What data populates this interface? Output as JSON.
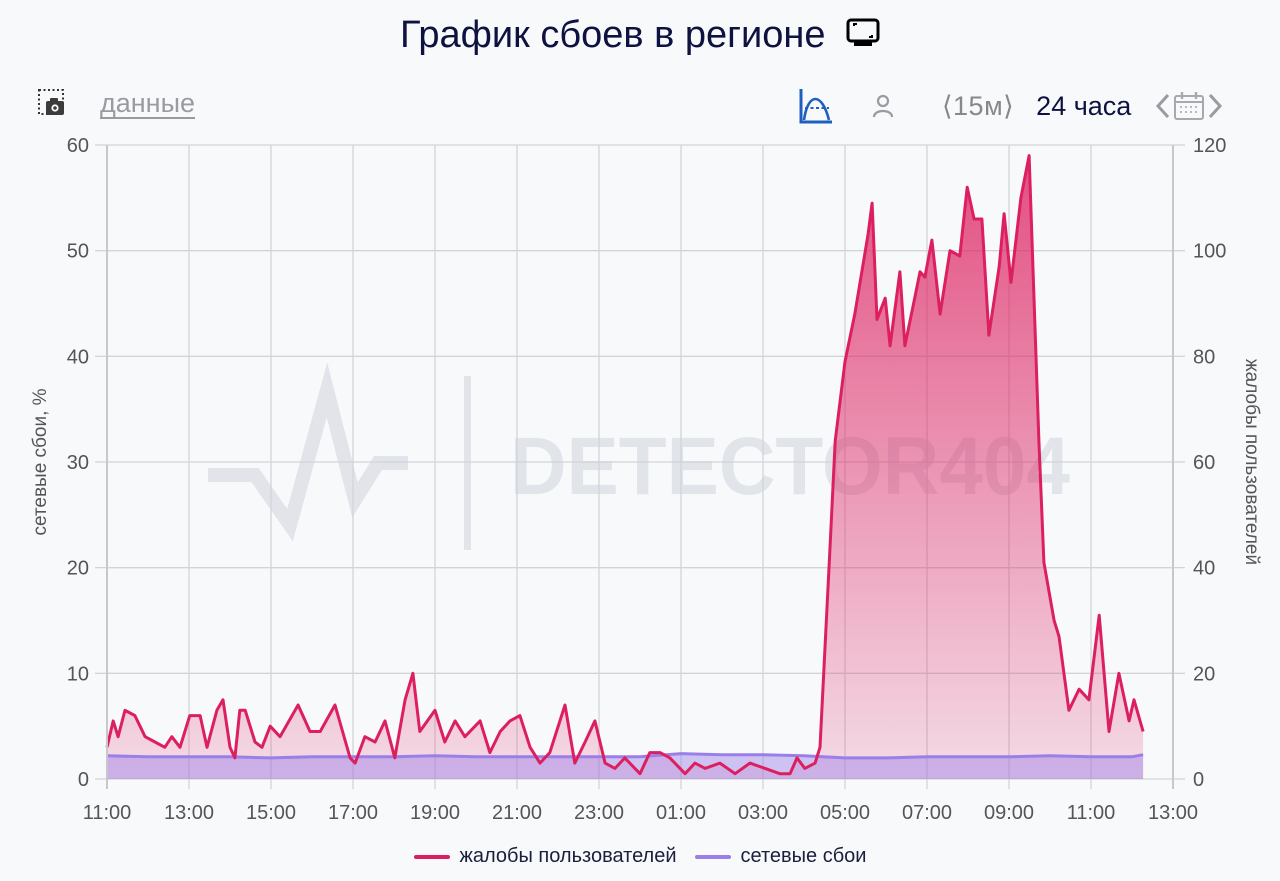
{
  "header": {
    "title": "График сбоев в регионе",
    "title_icon": "tv-monitor-icon"
  },
  "toolbar": {
    "screenshot_icon": "camera-screenshot-icon",
    "data_link": "данные",
    "chart_mode_icon": "area-chart-toggle-icon",
    "user_icon": "user-icon",
    "interval": "⟨15м⟩",
    "period": "24 часа",
    "prev_icon": "chevron-left-icon",
    "calendar_icon": "calendar-icon",
    "next_icon": "chevron-right-icon"
  },
  "colors": {
    "complaints": "#dc1f5f",
    "network": "#9b7fe8",
    "accent": "#1f5fbf",
    "title": "#0d1240",
    "grid": "#d4d4d8"
  },
  "watermark": "DETECTOR404",
  "chart_data": {
    "type": "area",
    "title": "График сбоев в регионе",
    "xlabel": "",
    "ylabel": "сетевые сбои, %",
    "ylabel_right": "жалобы пользователей",
    "ylim": [
      0,
      60
    ],
    "ylim_right": [
      0,
      120
    ],
    "yticks": [
      0,
      10,
      20,
      30,
      40,
      50,
      60
    ],
    "yticks_right": [
      0,
      20,
      40,
      60,
      80,
      100,
      120
    ],
    "xticks": [
      "11:00",
      "13:00",
      "15:00",
      "17:00",
      "19:00",
      "21:00",
      "23:00",
      "01:00",
      "03:00",
      "05:00",
      "07:00",
      "09:00",
      "11:00",
      "13:00"
    ],
    "x_range_hours": [
      0,
      26
    ],
    "grid": true,
    "legend_position": "bottom",
    "series": [
      {
        "name": "жалобы пользователей",
        "axis": "right",
        "color": "#dc1f5f",
        "points_hours_value": [
          [
            0,
            6
          ],
          [
            0.15,
            11
          ],
          [
            0.27,
            8
          ],
          [
            0.44,
            13
          ],
          [
            0.68,
            12
          ],
          [
            0.93,
            8
          ],
          [
            1.17,
            7
          ],
          [
            1.41,
            6
          ],
          [
            1.58,
            8
          ],
          [
            1.78,
            6
          ],
          [
            2.02,
            12
          ],
          [
            2.27,
            12
          ],
          [
            2.44,
            6
          ],
          [
            2.68,
            13
          ],
          [
            2.83,
            15
          ],
          [
            3.0,
            6
          ],
          [
            3.12,
            4
          ],
          [
            3.24,
            13
          ],
          [
            3.37,
            13
          ],
          [
            3.61,
            7
          ],
          [
            3.78,
            6
          ],
          [
            3.98,
            10
          ],
          [
            4.22,
            8
          ],
          [
            4.66,
            14
          ],
          [
            4.95,
            9
          ],
          [
            5.2,
            9
          ],
          [
            5.56,
            14
          ],
          [
            5.93,
            4
          ],
          [
            6.05,
            3
          ],
          [
            6.29,
            8
          ],
          [
            6.54,
            7
          ],
          [
            6.78,
            11
          ],
          [
            7.02,
            4
          ],
          [
            7.27,
            15
          ],
          [
            7.46,
            20
          ],
          [
            7.63,
            9
          ],
          [
            8.0,
            13
          ],
          [
            8.24,
            7
          ],
          [
            8.49,
            11
          ],
          [
            8.73,
            8
          ],
          [
            9.1,
            11
          ],
          [
            9.34,
            5
          ],
          [
            9.59,
            9
          ],
          [
            9.83,
            11
          ],
          [
            10.07,
            12
          ],
          [
            10.32,
            6
          ],
          [
            10.56,
            3
          ],
          [
            10.8,
            5
          ],
          [
            11.17,
            14
          ],
          [
            11.41,
            3
          ],
          [
            11.66,
            7
          ],
          [
            11.9,
            11
          ],
          [
            12.15,
            3
          ],
          [
            12.39,
            2
          ],
          [
            12.63,
            4
          ],
          [
            13.0,
            1
          ],
          [
            13.24,
            5
          ],
          [
            13.49,
            5
          ],
          [
            13.73,
            4
          ],
          [
            14.1,
            1
          ],
          [
            14.34,
            3
          ],
          [
            14.59,
            2
          ],
          [
            14.95,
            3
          ],
          [
            15.32,
            1
          ],
          [
            15.68,
            3
          ],
          [
            16.05,
            2
          ],
          [
            16.41,
            1
          ],
          [
            16.66,
            1
          ],
          [
            16.83,
            4
          ],
          [
            17.02,
            2
          ],
          [
            17.27,
            3
          ],
          [
            17.39,
            6
          ],
          [
            17.63,
            43
          ],
          [
            17.76,
            64
          ],
          [
            18.0,
            79
          ],
          [
            18.24,
            88
          ],
          [
            18.56,
            103
          ],
          [
            18.66,
            109
          ],
          [
            18.78,
            87
          ],
          [
            18.98,
            91
          ],
          [
            19.1,
            82
          ],
          [
            19.34,
            96
          ],
          [
            19.46,
            82
          ],
          [
            19.7,
            91
          ],
          [
            19.83,
            96
          ],
          [
            19.95,
            95
          ],
          [
            20.12,
            102
          ],
          [
            20.32,
            88
          ],
          [
            20.56,
            100
          ],
          [
            20.8,
            99
          ],
          [
            20.98,
            112
          ],
          [
            21.15,
            106
          ],
          [
            21.34,
            106
          ],
          [
            21.51,
            84
          ],
          [
            21.76,
            97
          ],
          [
            21.88,
            107
          ],
          [
            22.05,
            94
          ],
          [
            22.29,
            110
          ],
          [
            22.49,
            118
          ],
          [
            22.73,
            64
          ],
          [
            22.85,
            41
          ],
          [
            23.1,
            30
          ],
          [
            23.22,
            27
          ],
          [
            23.46,
            13
          ],
          [
            23.71,
            17
          ],
          [
            23.95,
            15
          ],
          [
            24.2,
            31
          ],
          [
            24.44,
            9
          ],
          [
            24.68,
            20
          ],
          [
            24.93,
            11
          ],
          [
            25.05,
            15
          ],
          [
            25.27,
            9
          ]
        ]
      },
      {
        "name": "сетевые сбои",
        "axis": "left",
        "color": "#9b7fe8",
        "points_hours_value": [
          [
            0,
            2.2
          ],
          [
            1.0,
            2.1
          ],
          [
            2.0,
            2.1
          ],
          [
            3.0,
            2.1
          ],
          [
            4.0,
            2.0
          ],
          [
            5.0,
            2.1
          ],
          [
            6.0,
            2.1
          ],
          [
            7.0,
            2.1
          ],
          [
            8.0,
            2.2
          ],
          [
            9.0,
            2.1
          ],
          [
            10.0,
            2.1
          ],
          [
            11.0,
            2.1
          ],
          [
            12.0,
            2.1
          ],
          [
            13.0,
            2.1
          ],
          [
            14.0,
            2.4
          ],
          [
            15.0,
            2.3
          ],
          [
            16.0,
            2.3
          ],
          [
            17.0,
            2.2
          ],
          [
            18.0,
            2.0
          ],
          [
            19.0,
            2.0
          ],
          [
            20.0,
            2.1
          ],
          [
            21.0,
            2.1
          ],
          [
            22.0,
            2.1
          ],
          [
            23.0,
            2.2
          ],
          [
            24.0,
            2.1
          ],
          [
            25.0,
            2.1
          ],
          [
            25.27,
            2.3
          ]
        ]
      }
    ]
  },
  "legend": {
    "items": [
      {
        "label": "жалобы пользователей",
        "color": "#dc1f5f"
      },
      {
        "label": "сетевые сбои",
        "color": "#9b7fe8"
      }
    ]
  }
}
